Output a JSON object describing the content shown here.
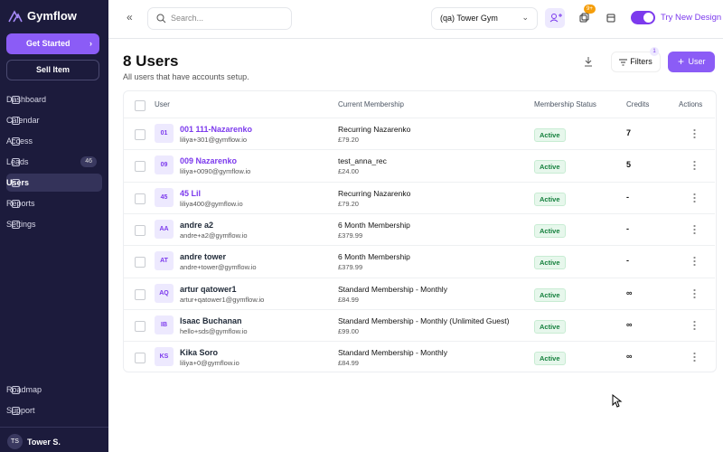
{
  "sidebar": {
    "brand": "Gymflow",
    "get_started": "Get Started",
    "sell_item": "Sell Item",
    "nav": [
      {
        "label": "Dashboard"
      },
      {
        "label": "Calendar"
      },
      {
        "label": "Access"
      },
      {
        "label": "Leads",
        "badge": "46"
      },
      {
        "label": "Users",
        "active": true
      },
      {
        "label": "Reports"
      },
      {
        "label": "Settings"
      }
    ],
    "bottom_nav": [
      {
        "label": "Roadmap"
      },
      {
        "label": "Support"
      }
    ],
    "user": {
      "initials": "TS",
      "name": "Tower S."
    }
  },
  "topbar": {
    "search_placeholder": "Search...",
    "gym": "(qa) Tower Gym",
    "notification_badge": "9+",
    "try_new_design": "Try New Design"
  },
  "header": {
    "title": "8 Users",
    "subtitle": "All users that have accounts setup.",
    "filters": "Filters",
    "filters_badge": "1",
    "add_user": "User"
  },
  "table": {
    "columns": [
      "User",
      "Current Membership",
      "Membership Status",
      "Credits",
      "Actions"
    ],
    "rows": [
      {
        "initials": "01",
        "name": "001 111-Nazarenko",
        "email": "liliya+301@gymflow.io",
        "membership": "Recurring Nazarenko",
        "price": "£79.20",
        "status": "Active",
        "credits": "7",
        "name_color": "#7c3aed"
      },
      {
        "initials": "09",
        "name": "009 Nazarenko",
        "email": "liliya+0090@gymflow.io",
        "membership": "test_anna_rec",
        "price": "£24.00",
        "status": "Active",
        "credits": "5",
        "name_color": "#7c3aed"
      },
      {
        "initials": "45",
        "name": "45 Lil",
        "email": "liliya400@gymflow.io",
        "membership": "Recurring Nazarenko",
        "price": "£79.20",
        "status": "Active",
        "credits": "-",
        "name_color": "#7c3aed"
      },
      {
        "initials": "AA",
        "name": "andre a2",
        "email": "andre+a2@gymflow.io",
        "membership": "6 Month Membership",
        "price": "£379.99",
        "status": "Active",
        "credits": "-",
        "name_color": "#1f2937"
      },
      {
        "initials": "AT",
        "name": "andre tower",
        "email": "andre+tower@gymflow.io",
        "membership": "6 Month Membership",
        "price": "£379.99",
        "status": "Active",
        "credits": "-",
        "name_color": "#1f2937"
      },
      {
        "initials": "AQ",
        "name": "artur qatower1",
        "email": "artur+qatower1@gymflow.io",
        "membership": "Standard Membership - Monthly",
        "price": "£84.99",
        "status": "Active",
        "credits": "∞",
        "name_color": "#1f2937"
      },
      {
        "initials": "IB",
        "name": "Isaac Buchanan",
        "email": "hello+sds@gymflow.io",
        "membership": "Standard Membership - Monthly (Unlimited Guest)",
        "price": "£99.00",
        "status": "Active",
        "credits": "∞",
        "name_color": "#1f2937"
      },
      {
        "initials": "KS",
        "name": "Kika Soro",
        "email": "liliya+0@gymflow.io",
        "membership": "Standard Membership - Monthly",
        "price": "£84.99",
        "status": "Active",
        "credits": "∞",
        "name_color": "#1f2937"
      }
    ]
  }
}
